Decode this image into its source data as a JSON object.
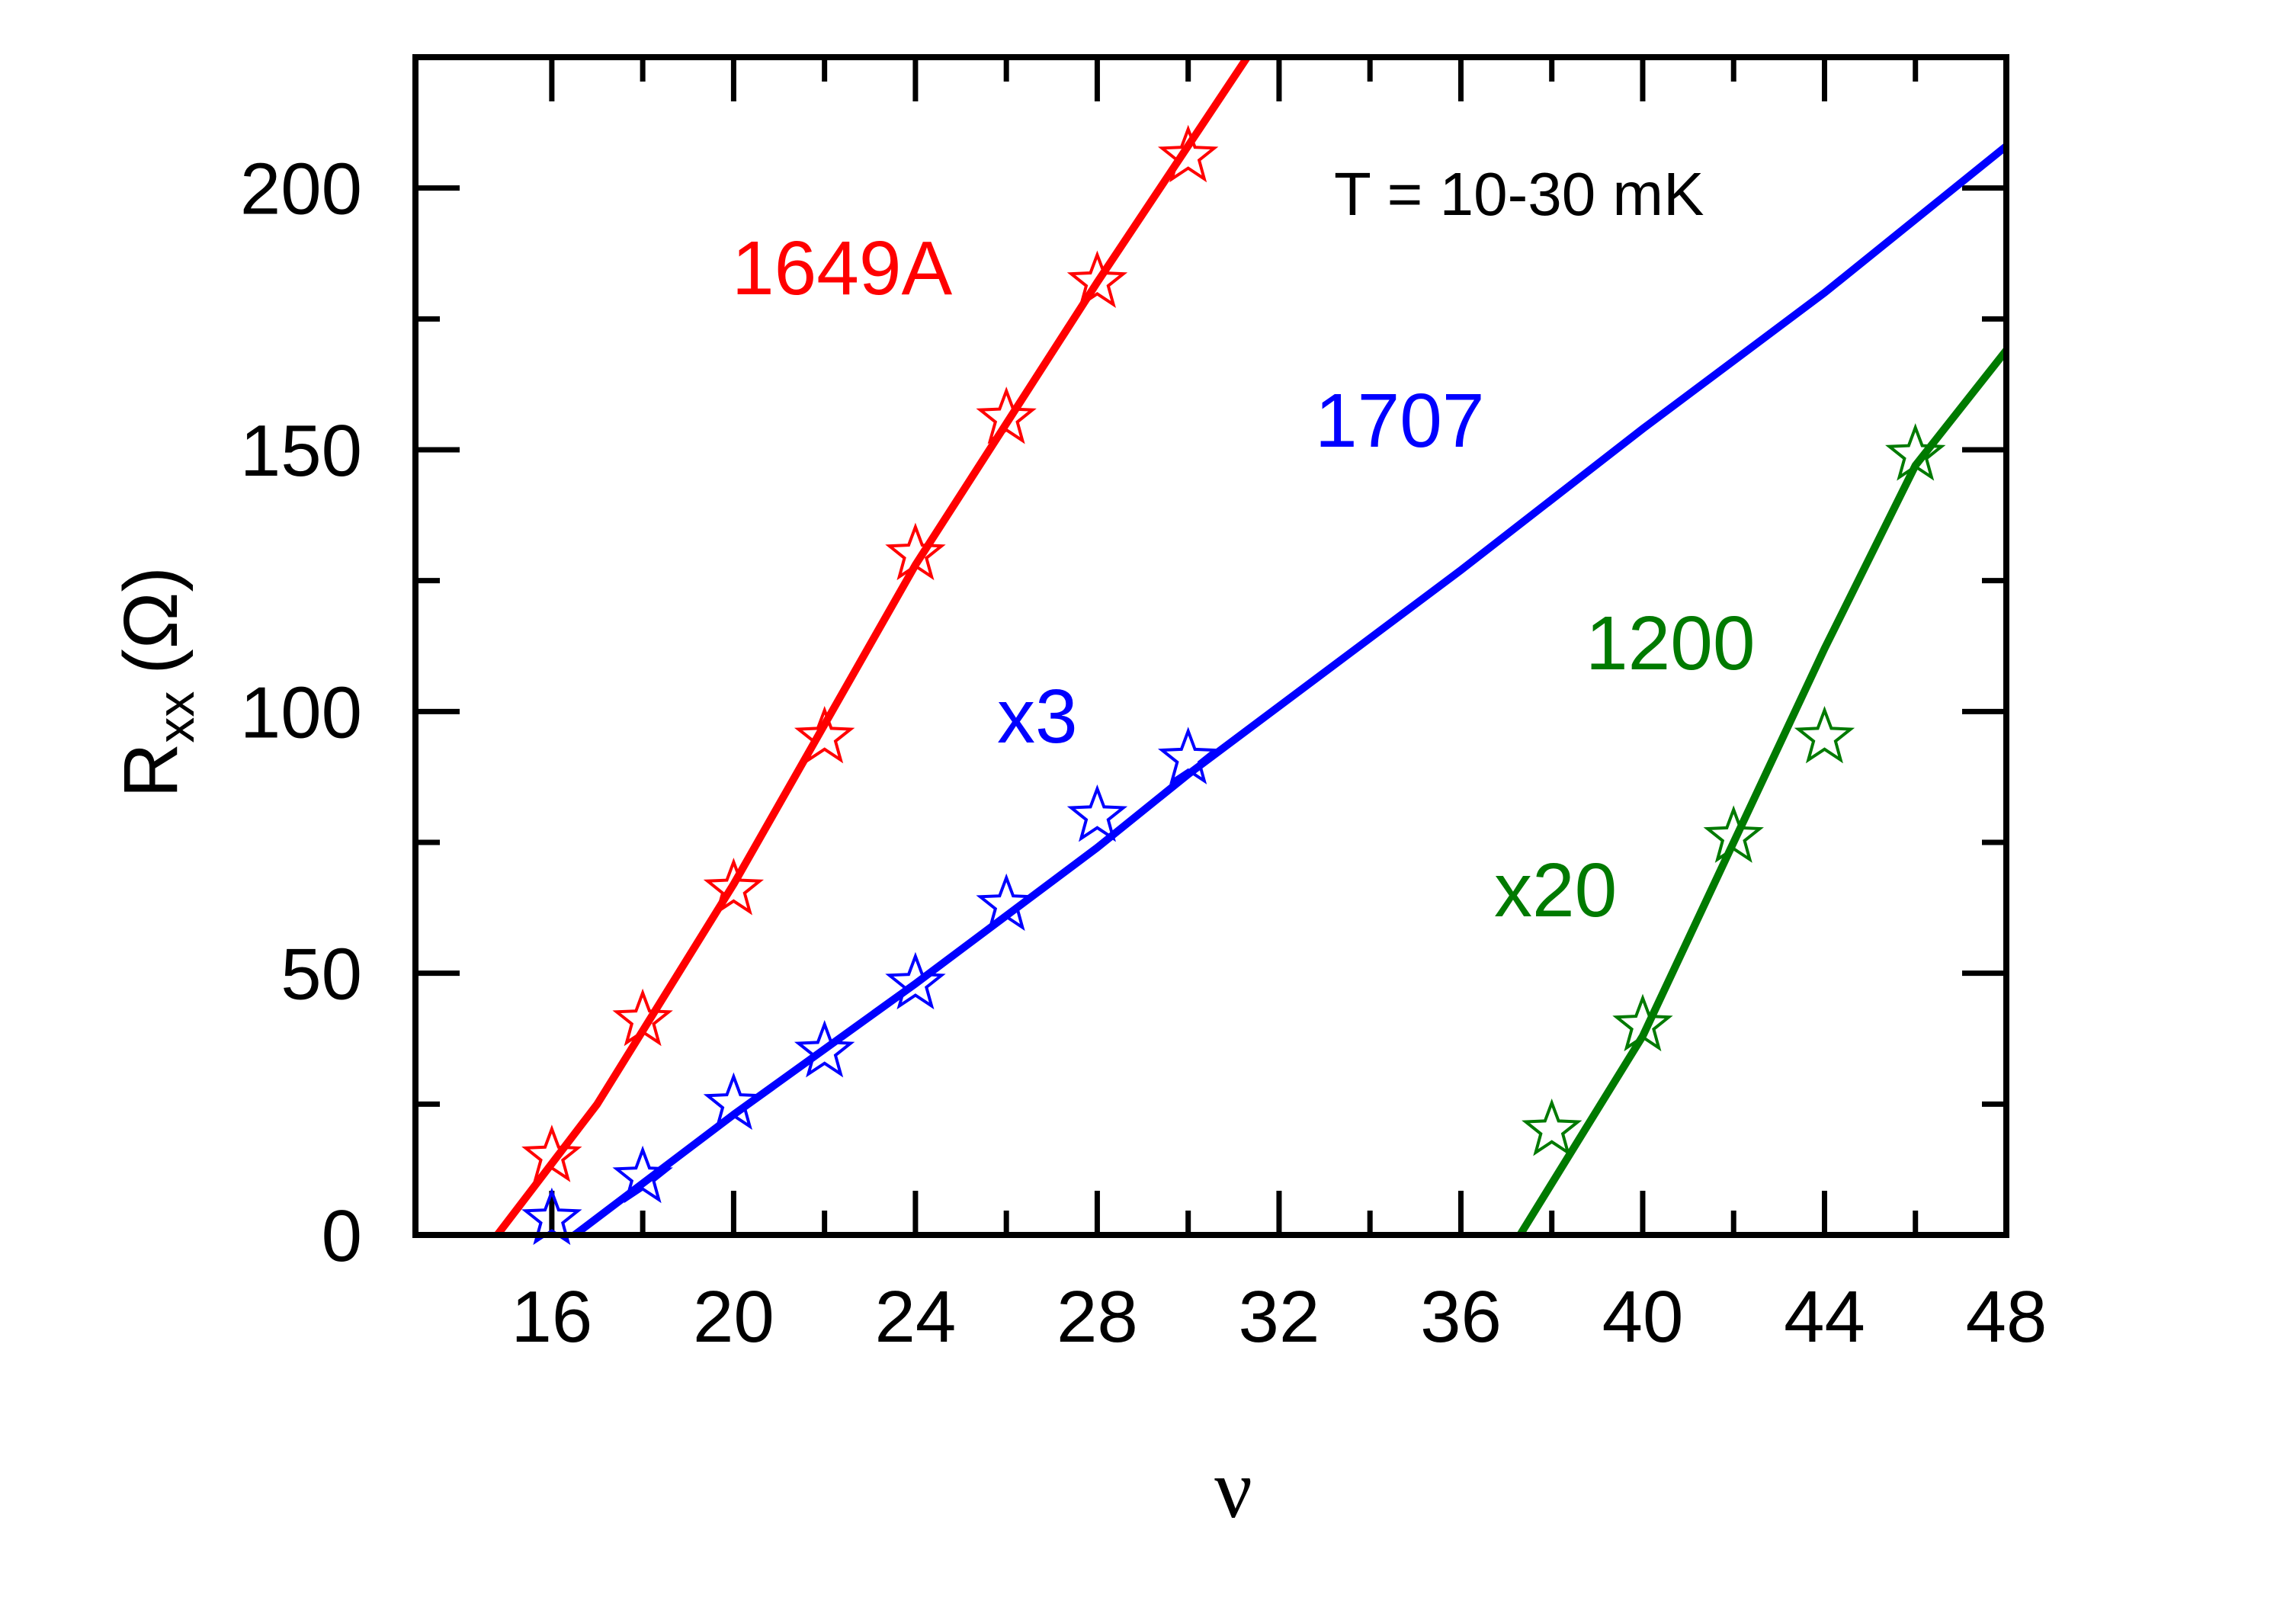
{
  "chart_data": {
    "type": "scatter",
    "xlabel": "ν",
    "ylabel": "R",
    "ylabel_subscript": "xx",
    "ylabel_unit": "(Ω)",
    "xlim": [
      13,
      48
    ],
    "ylim": [
      0,
      225
    ],
    "x_ticks": [
      16,
      20,
      24,
      28,
      32,
      36,
      40,
      44,
      48
    ],
    "x_tick_labels": [
      "16",
      "20",
      "24",
      "28",
      "32",
      "36",
      "40",
      "44",
      "48"
    ],
    "x_minor_ticks": [
      18,
      22,
      26,
      30,
      34,
      38,
      42,
      46
    ],
    "y_ticks": [
      0,
      50,
      100,
      150,
      200
    ],
    "y_tick_labels": [
      "0",
      "50",
      "100",
      "150",
      "200"
    ],
    "y_minor_ticks": [
      25,
      75,
      125,
      175
    ],
    "grid": false,
    "annotation": "T = 10-30 mK",
    "series": [
      {
        "name": "1649A",
        "color": "#ff0000",
        "marker": "open-star",
        "x": [
          16,
          18,
          20,
          22,
          24,
          26,
          28,
          30
        ],
        "y": [
          15,
          41,
          66,
          95,
          130,
          156,
          182,
          206
        ],
        "fit_line": [
          [
            14.8,
            0
          ],
          [
            17,
            25
          ],
          [
            20,
            67
          ],
          [
            24,
            128
          ],
          [
            28,
            182
          ],
          [
            31.3,
            225
          ]
        ],
        "labels": [
          "1649A"
        ]
      },
      {
        "name": "1707",
        "color": "#0000ff",
        "marker": "open-star",
        "x": [
          16,
          18,
          20,
          22,
          24,
          26,
          28,
          30
        ],
        "y": [
          3,
          11,
          25,
          35,
          48,
          63,
          80,
          91
        ],
        "fit_line": [
          [
            16.5,
            0
          ],
          [
            20,
            23
          ],
          [
            24,
            48
          ],
          [
            28,
            74
          ],
          [
            30,
            88
          ],
          [
            36,
            127
          ],
          [
            40,
            154
          ],
          [
            44,
            180
          ],
          [
            48,
            208
          ]
        ],
        "labels": [
          "1707",
          "x3"
        ]
      },
      {
        "name": "1200",
        "color": "#007a00",
        "marker": "open-star",
        "x": [
          38,
          40,
          42,
          44,
          46
        ],
        "y": [
          20,
          40,
          76,
          95,
          149
        ],
        "fit_line": [
          [
            37.3,
            0
          ],
          [
            40,
            38
          ],
          [
            42,
            75
          ],
          [
            44,
            112
          ],
          [
            46,
            147
          ],
          [
            48,
            169
          ]
        ],
        "labels": [
          "1200",
          "x20"
        ]
      }
    ]
  }
}
